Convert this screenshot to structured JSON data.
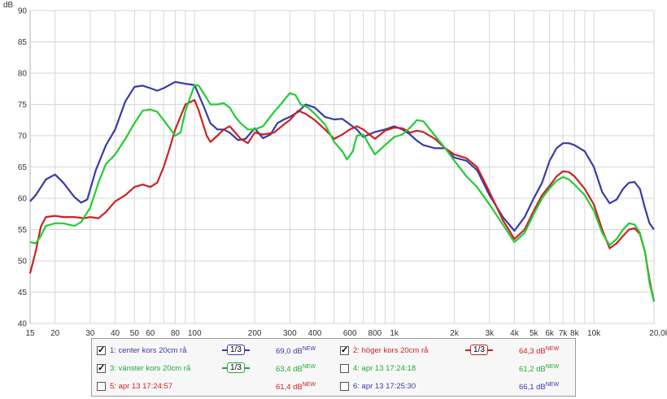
{
  "chart_data": {
    "type": "line",
    "ylabel": "dB",
    "xlabel": "",
    "xlim": [
      15,
      20000
    ],
    "ylim": [
      40,
      90
    ],
    "x_scale": "log",
    "grid": true,
    "y_ticks": [
      40,
      45,
      50,
      55,
      60,
      65,
      70,
      75,
      80,
      85,
      90
    ],
    "x_ticks": [
      {
        "value": 15,
        "label": "15"
      },
      {
        "value": 20,
        "label": "20"
      },
      {
        "value": 30,
        "label": "30"
      },
      {
        "value": 40,
        "label": "40"
      },
      {
        "value": 50,
        "label": "50"
      },
      {
        "value": 60,
        "label": "60"
      },
      {
        "value": 80,
        "label": "80"
      },
      {
        "value": 100,
        "label": "100"
      },
      {
        "value": 200,
        "label": "200"
      },
      {
        "value": 300,
        "label": "300"
      },
      {
        "value": 400,
        "label": "400"
      },
      {
        "value": 600,
        "label": "600"
      },
      {
        "value": 800,
        "label": "800"
      },
      {
        "value": 1000,
        "label": "1k"
      },
      {
        "value": 2000,
        "label": "2k"
      },
      {
        "value": 3000,
        "label": "3k"
      },
      {
        "value": 4000,
        "label": "4k"
      },
      {
        "value": 5000,
        "label": "5k"
      },
      {
        "value": 6000,
        "label": "6k"
      },
      {
        "value": 7000,
        "label": "7k"
      },
      {
        "value": 8000,
        "label": "8k"
      },
      {
        "value": 10000,
        "label": "10k"
      },
      {
        "value": 20000,
        "label": "20,0k Hz"
      }
    ],
    "series": [
      {
        "name": "1: center kors 20cm rå",
        "color": "#3a3aa8",
        "points": [
          [
            15,
            59.5
          ],
          [
            16,
            60.5
          ],
          [
            18,
            63
          ],
          [
            20,
            63.8
          ],
          [
            22,
            62.5
          ],
          [
            25,
            60.2
          ],
          [
            27,
            59.3
          ],
          [
            29,
            59.8
          ],
          [
            32,
            64.5
          ],
          [
            36,
            68.5
          ],
          [
            40,
            71
          ],
          [
            45,
            75.5
          ],
          [
            50,
            77.8
          ],
          [
            55,
            78
          ],
          [
            60,
            77.6
          ],
          [
            65,
            77.2
          ],
          [
            70,
            77.6
          ],
          [
            80,
            78.6
          ],
          [
            90,
            78.3
          ],
          [
            100,
            78.1
          ],
          [
            110,
            75
          ],
          [
            120,
            72
          ],
          [
            130,
            71
          ],
          [
            140,
            71
          ],
          [
            150,
            70.5
          ],
          [
            165,
            69.3
          ],
          [
            180,
            69.5
          ],
          [
            200,
            71.2
          ],
          [
            220,
            69.6
          ],
          [
            240,
            70.2
          ],
          [
            260,
            72
          ],
          [
            280,
            72.6
          ],
          [
            300,
            73
          ],
          [
            330,
            73.8
          ],
          [
            360,
            75
          ],
          [
            400,
            74.5
          ],
          [
            450,
            73
          ],
          [
            500,
            72.6
          ],
          [
            550,
            72.7
          ],
          [
            600,
            71.8
          ],
          [
            650,
            71
          ],
          [
            700,
            69.8
          ],
          [
            800,
            70.6
          ],
          [
            900,
            71
          ],
          [
            1000,
            71.5
          ],
          [
            1100,
            71
          ],
          [
            1200,
            70.2
          ],
          [
            1300,
            69.2
          ],
          [
            1400,
            68.5
          ],
          [
            1600,
            68
          ],
          [
            1800,
            68
          ],
          [
            2000,
            66.5
          ],
          [
            2300,
            66
          ],
          [
            2600,
            64.5
          ],
          [
            3000,
            60.5
          ],
          [
            3500,
            57
          ],
          [
            4000,
            54.8
          ],
          [
            4500,
            57
          ],
          [
            5000,
            60
          ],
          [
            5500,
            62.5
          ],
          [
            6000,
            66
          ],
          [
            6500,
            68
          ],
          [
            7000,
            68.8
          ],
          [
            7500,
            68.8
          ],
          [
            8000,
            68.5
          ],
          [
            9000,
            67.5
          ],
          [
            10000,
            65
          ],
          [
            11000,
            61
          ],
          [
            12000,
            59.2
          ],
          [
            13000,
            59.8
          ],
          [
            14000,
            61.5
          ],
          [
            15000,
            62.5
          ],
          [
            16000,
            62.6
          ],
          [
            17000,
            61.5
          ],
          [
            18000,
            58.5
          ],
          [
            19000,
            56
          ],
          [
            20000,
            55
          ]
        ]
      },
      {
        "name": "2: höger kors 20cm rå",
        "color": "#cc2222",
        "points": [
          [
            15,
            48
          ],
          [
            16,
            51.5
          ],
          [
            17,
            55.5
          ],
          [
            18,
            57
          ],
          [
            20,
            57.2
          ],
          [
            22,
            57
          ],
          [
            25,
            57
          ],
          [
            28,
            56.8
          ],
          [
            30,
            57
          ],
          [
            33,
            56.8
          ],
          [
            36,
            57.8
          ],
          [
            40,
            59.5
          ],
          [
            45,
            60.5
          ],
          [
            50,
            61.8
          ],
          [
            55,
            62.2
          ],
          [
            60,
            61.8
          ],
          [
            65,
            62.5
          ],
          [
            70,
            65
          ],
          [
            75,
            68
          ],
          [
            80,
            71
          ],
          [
            90,
            75
          ],
          [
            100,
            75.7
          ],
          [
            105,
            74
          ],
          [
            115,
            70
          ],
          [
            120,
            69
          ],
          [
            130,
            70
          ],
          [
            140,
            71
          ],
          [
            150,
            71.5
          ],
          [
            160,
            70.5
          ],
          [
            170,
            69.5
          ],
          [
            185,
            68.8
          ],
          [
            200,
            70.5
          ],
          [
            220,
            70.2
          ],
          [
            250,
            70.5
          ],
          [
            280,
            71.8
          ],
          [
            300,
            72.5
          ],
          [
            330,
            74
          ],
          [
            360,
            73.5
          ],
          [
            400,
            72.5
          ],
          [
            450,
            71
          ],
          [
            500,
            69.5
          ],
          [
            550,
            70.2
          ],
          [
            600,
            71
          ],
          [
            650,
            71.5
          ],
          [
            700,
            71
          ],
          [
            800,
            69.5
          ],
          [
            900,
            70.8
          ],
          [
            1000,
            71.3
          ],
          [
            1100,
            71.2
          ],
          [
            1200,
            70.5
          ],
          [
            1300,
            70.8
          ],
          [
            1400,
            70.6
          ],
          [
            1600,
            69.5
          ],
          [
            1800,
            68
          ],
          [
            2000,
            67
          ],
          [
            2300,
            66.4
          ],
          [
            2600,
            65
          ],
          [
            3000,
            61
          ],
          [
            3500,
            56.5
          ],
          [
            4000,
            53.5
          ],
          [
            4500,
            55
          ],
          [
            5000,
            58
          ],
          [
            5500,
            60.5
          ],
          [
            6000,
            62
          ],
          [
            6500,
            63.5
          ],
          [
            7000,
            64.3
          ],
          [
            7500,
            64.2
          ],
          [
            8000,
            63.5
          ],
          [
            9000,
            61.5
          ],
          [
            10000,
            59
          ],
          [
            11000,
            55
          ],
          [
            12000,
            52
          ],
          [
            13000,
            52.8
          ],
          [
            14000,
            54
          ],
          [
            15000,
            55
          ],
          [
            16000,
            55.2
          ],
          [
            17000,
            54.3
          ],
          [
            18000,
            51.5
          ],
          [
            19000,
            47
          ],
          [
            20000,
            43.5
          ]
        ]
      },
      {
        "name": "3: vänster kors 20cm rå",
        "color": "#22cc33",
        "points": [
          [
            15,
            53
          ],
          [
            16,
            52.8
          ],
          [
            17,
            54
          ],
          [
            18,
            55.6
          ],
          [
            20,
            56
          ],
          [
            22,
            56
          ],
          [
            25,
            55.6
          ],
          [
            27,
            56.2
          ],
          [
            30,
            58.5
          ],
          [
            33,
            62.5
          ],
          [
            36,
            65.5
          ],
          [
            40,
            67
          ],
          [
            45,
            69.5
          ],
          [
            50,
            72
          ],
          [
            55,
            74
          ],
          [
            60,
            74.2
          ],
          [
            65,
            73.8
          ],
          [
            70,
            72.5
          ],
          [
            80,
            70
          ],
          [
            85,
            70.5
          ],
          [
            90,
            74
          ],
          [
            100,
            78.1
          ],
          [
            105,
            78
          ],
          [
            115,
            76
          ],
          [
            120,
            75
          ],
          [
            130,
            75
          ],
          [
            140,
            75.2
          ],
          [
            150,
            74.5
          ],
          [
            160,
            73
          ],
          [
            170,
            72
          ],
          [
            185,
            71
          ],
          [
            200,
            71
          ],
          [
            220,
            71.5
          ],
          [
            250,
            73.8
          ],
          [
            270,
            75
          ],
          [
            300,
            76.8
          ],
          [
            320,
            76.5
          ],
          [
            340,
            75
          ],
          [
            370,
            74.5
          ],
          [
            400,
            73.5
          ],
          [
            450,
            71.8
          ],
          [
            500,
            69
          ],
          [
            550,
            67.5
          ],
          [
            580,
            66.2
          ],
          [
            620,
            67.5
          ],
          [
            650,
            70
          ],
          [
            700,
            70.2
          ],
          [
            750,
            68.5
          ],
          [
            800,
            67
          ],
          [
            900,
            68.5
          ],
          [
            1000,
            69.8
          ],
          [
            1100,
            70.2
          ],
          [
            1200,
            71.3
          ],
          [
            1300,
            72.5
          ],
          [
            1400,
            72.3
          ],
          [
            1600,
            70
          ],
          [
            1800,
            68
          ],
          [
            2000,
            66
          ],
          [
            2300,
            63.5
          ],
          [
            2600,
            61.8
          ],
          [
            3000,
            59
          ],
          [
            3500,
            55.8
          ],
          [
            4000,
            53
          ],
          [
            4500,
            54.5
          ],
          [
            5000,
            57.5
          ],
          [
            5500,
            60
          ],
          [
            6000,
            61.6
          ],
          [
            6500,
            62.8
          ],
          [
            7000,
            63.4
          ],
          [
            7500,
            63
          ],
          [
            8000,
            62.2
          ],
          [
            9000,
            60.5
          ],
          [
            10000,
            58
          ],
          [
            11000,
            54.5
          ],
          [
            12000,
            52.5
          ],
          [
            13000,
            53.5
          ],
          [
            14000,
            55
          ],
          [
            15000,
            56
          ],
          [
            16000,
            55.8
          ],
          [
            17000,
            54.5
          ],
          [
            18000,
            51.5
          ],
          [
            19000,
            46.5
          ],
          [
            20000,
            43.5
          ]
        ]
      }
    ],
    "legend": {
      "placement": "bottom-center",
      "items": [
        {
          "label": "1: center kors 20cm rå",
          "checked": true,
          "smoothing": "1/3",
          "level": "69,0 dB",
          "badge": "NEW",
          "color": "#3a3aa8"
        },
        {
          "label": "2: höger kors 20cm rå",
          "checked": true,
          "smoothing": "1/3",
          "level": "64,3 dB",
          "badge": "NEW",
          "color": "#cc2222"
        },
        {
          "label": "3: vänster kors 20cm rå",
          "checked": true,
          "smoothing": "1/3",
          "level": "63,4 dB",
          "badge": "NEW",
          "color": "#22aa33"
        },
        {
          "label": "4: apr 13 17:24:18",
          "checked": false,
          "smoothing": "",
          "level": "61,2 dB",
          "badge": "NEW",
          "color": "#22aa33"
        },
        {
          "label": "5: apr 13 17:24:57",
          "checked": false,
          "smoothing": "",
          "level": "61,4 dB",
          "badge": "NEW",
          "color": "#cc2222"
        },
        {
          "label": "6: apr 13 17:25:30",
          "checked": false,
          "smoothing": "",
          "level": "66,1 dB",
          "badge": "NEW",
          "color": "#3a3aa8"
        }
      ]
    }
  }
}
